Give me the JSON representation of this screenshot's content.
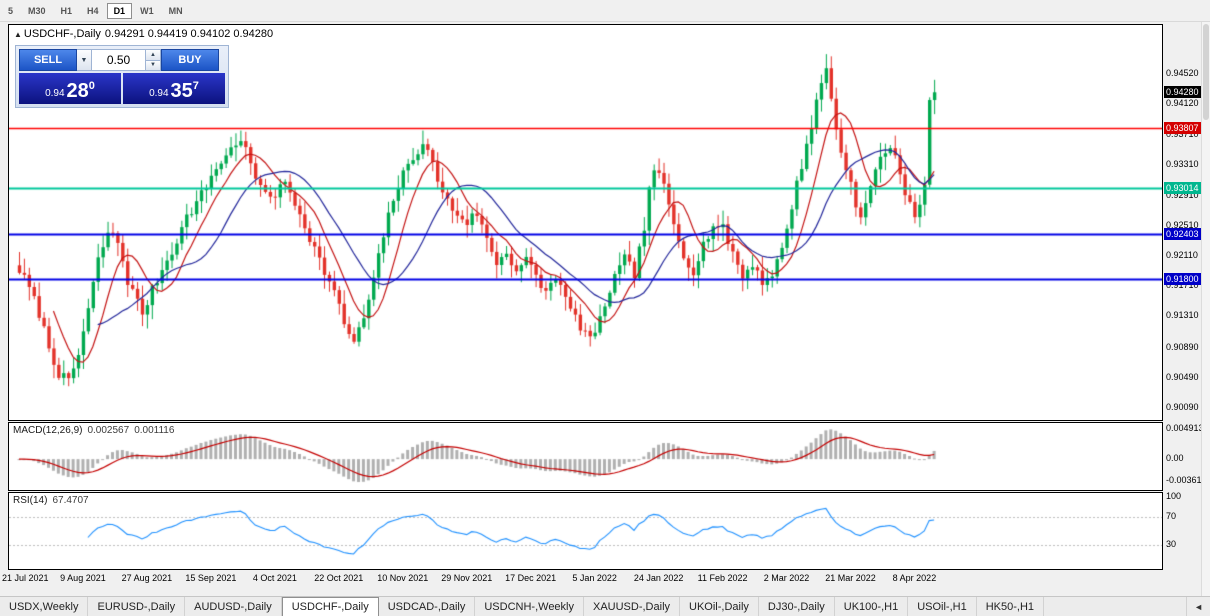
{
  "toolbar": {
    "timeframes": [
      {
        "label": "5",
        "active": false
      },
      {
        "label": "M30",
        "active": false
      },
      {
        "label": "H1",
        "active": false
      },
      {
        "label": "H4",
        "active": false
      },
      {
        "label": "D1",
        "active": true
      },
      {
        "label": "W1",
        "active": false
      },
      {
        "label": "MN",
        "active": false
      }
    ]
  },
  "chart": {
    "collapse_icon": "▲",
    "symbol_title": "USDCHF-,Daily",
    "ohlc": "0.94291 0.94419 0.94102 0.94280",
    "current_price": "0.94280",
    "current_price_badge": "#000000",
    "axis_labels": [
      "0.94520",
      "0.94120",
      "0.93710",
      "0.93310",
      "0.92910",
      "0.92510",
      "0.92110",
      "0.91710",
      "0.91310",
      "0.90890",
      "0.90490",
      "0.90090"
    ],
    "levels": [
      {
        "label": "0.93807",
        "price": 0.93807,
        "color": "#ff0000",
        "badge": "#d40000",
        "width": 1.5
      },
      {
        "label": "0.93014",
        "price": 0.93014,
        "color": "#00c79c",
        "badge": "#00b78f",
        "width": 2
      },
      {
        "label": "0.92403",
        "price": 0.92403,
        "color": "#0000e6",
        "badge": "#0000c8",
        "width": 2
      },
      {
        "label": "0.91800",
        "price": 0.918,
        "color": "#0000e6",
        "badge": "#0000c8",
        "width": 2
      }
    ],
    "colors": {
      "bull": "#00a94f",
      "bear": "#e3322a",
      "ma_fast_red": "#c41414",
      "ma_slow_blue": "#23279b",
      "macd_hist": "#b0b0b0",
      "macd_signal": "#c40000",
      "rsi_line": "#1e90ff",
      "rsi_level": "#bcbcbc"
    }
  },
  "trade_panel": {
    "sell_label": "SELL",
    "buy_label": "BUY",
    "lot": "0.50",
    "dropdown_icon": "▼",
    "spinner_up_icon": "▲",
    "spinner_down_icon": "▼",
    "sell_price": {
      "base": "0.94",
      "big": "28",
      "sup": "0"
    },
    "buy_price": {
      "base": "0.94",
      "big": "35",
      "sup": "7"
    }
  },
  "macd": {
    "label": "MACD(12,26,9)",
    "value_main": "0.002567",
    "value_signal": "0.001116",
    "axis_labels": [
      "0.004913",
      "0.00",
      "-0.003614"
    ]
  },
  "rsi": {
    "label": "RSI(14)",
    "value": "67.4707",
    "axis_labels": [
      "100",
      "70",
      "30"
    ],
    "levels": [
      70,
      30
    ]
  },
  "dates": [
    "21 Jul 2021",
    "9 Aug 2021",
    "27 Aug 2021",
    "15 Sep 2021",
    "4 Oct 2021",
    "22 Oct 2021",
    "10 Nov 2021",
    "29 Nov 2021",
    "17 Dec 2021",
    "5 Jan 2022",
    "24 Jan 2022",
    "11 Feb 2022",
    "2 Mar 2022",
    "21 Mar 2022",
    "8 Apr 2022"
  ],
  "tabs": {
    "items": [
      {
        "label": "USDX,Weekly",
        "active": false
      },
      {
        "label": "EURUSD-,Daily",
        "active": false
      },
      {
        "label": "AUDUSD-,Daily",
        "active": false
      },
      {
        "label": "USDCHF-,Daily",
        "active": true
      },
      {
        "label": "USDCAD-,Daily",
        "active": false
      },
      {
        "label": "USDCNH-,Weekly",
        "active": false
      },
      {
        "label": "XAUUSD-,Daily",
        "active": false
      },
      {
        "label": "UKOil-,Daily",
        "active": false
      },
      {
        "label": "DJ30-,Daily",
        "active": false
      },
      {
        "label": "UK100-,H1",
        "active": false
      },
      {
        "label": "USOil-,H1",
        "active": false
      },
      {
        "label": "HK50-,H1",
        "active": false
      }
    ],
    "nav_left_icon": "◄"
  },
  "chart_data": {
    "type": "candlestick",
    "symbol": "USDCHF",
    "timeframe": "Daily",
    "visible_range": {
      "start": "21 Jul 2021",
      "end": "8 Apr 2022"
    },
    "bars": 187,
    "ohlc_current": {
      "open": 0.94291,
      "high": 0.94419,
      "low": 0.94102,
      "close": 0.9428
    },
    "last_close": 0.9428,
    "price_axis": {
      "min": 0.9005,
      "max": 0.9512
    },
    "horizontal_lines": [
      0.93807,
      0.93014,
      0.92403,
      0.918
    ],
    "moving_averages": [
      {
        "name": "fast",
        "period": 8,
        "color": "#c41414"
      },
      {
        "name": "slow",
        "period": 17,
        "color": "#23279b"
      }
    ],
    "indicators": [
      {
        "name": "MACD",
        "params": [
          12,
          26,
          9
        ],
        "current_main": 0.002567,
        "current_signal": 0.001116,
        "axis_max": 0.004913,
        "axis_min": -0.003614
      },
      {
        "name": "RSI",
        "params": [
          14
        ],
        "current": 67.4707,
        "levels": [
          70,
          30
        ],
        "axis": [
          0,
          100
        ]
      }
    ],
    "close_keypoints": [
      [
        0,
        0.9192
      ],
      [
        2,
        0.9168
      ],
      [
        4,
        0.9135
      ],
      [
        6,
        0.909
      ],
      [
        8,
        0.9055
      ],
      [
        10,
        0.9042
      ],
      [
        12,
        0.908
      ],
      [
        14,
        0.914
      ],
      [
        16,
        0.9205
      ],
      [
        18,
        0.9242
      ],
      [
        20,
        0.923
      ],
      [
        22,
        0.9178
      ],
      [
        25,
        0.9135
      ],
      [
        28,
        0.918
      ],
      [
        31,
        0.9218
      ],
      [
        34,
        0.9262
      ],
      [
        37,
        0.9292
      ],
      [
        40,
        0.9328
      ],
      [
        43,
        0.9352
      ],
      [
        45,
        0.9368
      ],
      [
        47,
        0.9332
      ],
      [
        49,
        0.9298
      ],
      [
        52,
        0.9292
      ],
      [
        54,
        0.9308
      ],
      [
        56,
        0.9282
      ],
      [
        58,
        0.9252
      ],
      [
        61,
        0.9205
      ],
      [
        64,
        0.9162
      ],
      [
        66,
        0.9122
      ],
      [
        68,
        0.9095
      ],
      [
        70,
        0.9128
      ],
      [
        72,
        0.9178
      ],
      [
        74,
        0.9238
      ],
      [
        76,
        0.9288
      ],
      [
        78,
        0.9318
      ],
      [
        80,
        0.9342
      ],
      [
        82,
        0.9362
      ],
      [
        84,
        0.9332
      ],
      [
        86,
        0.9295
      ],
      [
        88,
        0.9272
      ],
      [
        91,
        0.9256
      ],
      [
        93,
        0.9268
      ],
      [
        95,
        0.9232
      ],
      [
        97,
        0.9202
      ],
      [
        99,
        0.9216
      ],
      [
        101,
        0.9192
      ],
      [
        103,
        0.9206
      ],
      [
        105,
        0.9182
      ],
      [
        107,
        0.9162
      ],
      [
        109,
        0.9186
      ],
      [
        111,
        0.9152
      ],
      [
        113,
        0.9128
      ],
      [
        115,
        0.9108
      ],
      [
        117,
        0.9102
      ],
      [
        119,
        0.9148
      ],
      [
        121,
        0.9182
      ],
      [
        123,
        0.9206
      ],
      [
        125,
        0.9188
      ],
      [
        127,
        0.9248
      ],
      [
        128,
        0.9295
      ],
      [
        129,
        0.9328
      ],
      [
        131,
        0.9302
      ],
      [
        133,
        0.9252
      ],
      [
        135,
        0.9212
      ],
      [
        137,
        0.9192
      ],
      [
        139,
        0.9226
      ],
      [
        141,
        0.9252
      ],
      [
        143,
        0.9246
      ],
      [
        145,
        0.9216
      ],
      [
        147,
        0.9182
      ],
      [
        149,
        0.9202
      ],
      [
        151,
        0.9176
      ],
      [
        153,
        0.9188
      ],
      [
        155,
        0.9218
      ],
      [
        157,
        0.9278
      ],
      [
        159,
        0.9332
      ],
      [
        161,
        0.9385
      ],
      [
        163,
        0.9442
      ],
      [
        164,
        0.9458
      ],
      [
        165,
        0.942
      ],
      [
        166,
        0.9382
      ],
      [
        167,
        0.935
      ],
      [
        168,
        0.9322
      ],
      [
        169,
        0.9312
      ],
      [
        170,
        0.9282
      ],
      [
        171,
        0.9258
      ],
      [
        173,
        0.9302
      ],
      [
        175,
        0.9342
      ],
      [
        177,
        0.9358
      ],
      [
        178,
        0.9338
      ],
      [
        179,
        0.9315
      ],
      [
        180,
        0.9298
      ],
      [
        181,
        0.9285
      ],
      [
        182,
        0.9262
      ],
      [
        183,
        0.9285
      ],
      [
        184,
        0.9305
      ],
      [
        185,
        0.9412
      ],
      [
        186,
        0.9428
      ]
    ]
  }
}
